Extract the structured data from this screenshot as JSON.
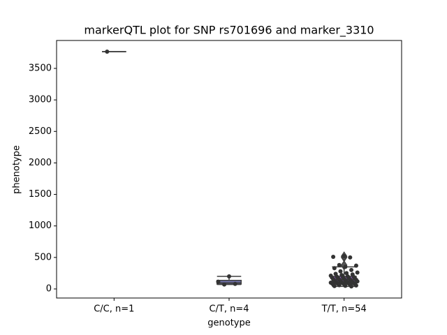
{
  "chart_data": {
    "type": "box",
    "title": "markerQTL plot for SNP rs701696 and marker_3310",
    "xlabel": "genotype",
    "ylabel": "phenotype",
    "categories": [
      "C/C, n=1",
      "C/T, n=4",
      "T/T, n=54"
    ],
    "colors": [
      "#3274a1",
      "#6f70ab",
      "#9b5bd8"
    ],
    "boxes": [
      {
        "min": 3766,
        "q1": 3766,
        "median": 3766,
        "q3": 3766,
        "max": 3766,
        "fliers": []
      },
      {
        "min": 70,
        "q1": 77.5,
        "median": 97.5,
        "q3": 136,
        "max": 200,
        "fliers": []
      },
      {
        "min": 40,
        "q1": 100,
        "median": 150,
        "q3": 200,
        "max": 350,
        "fliers": [
          370,
          380,
          500,
          510,
          520
        ]
      }
    ],
    "points": [
      [
        3766
      ],
      [
        200,
        115,
        80,
        70
      ],
      [
        520,
        510,
        500,
        380,
        370,
        350,
        330,
        300,
        280,
        260,
        250,
        240,
        230,
        220,
        210,
        200,
        195,
        190,
        185,
        180,
        175,
        170,
        165,
        160,
        155,
        150,
        148,
        145,
        140,
        135,
        130,
        125,
        120,
        118,
        115,
        110,
        105,
        100,
        98,
        95,
        92,
        90,
        88,
        85,
        80,
        78,
        75,
        70,
        65,
        60,
        55,
        50,
        45,
        40
      ]
    ],
    "ylim": [
      -144,
      3943
    ],
    "yticks": [
      0,
      500,
      1000,
      1500,
      2000,
      2500,
      3000,
      3500
    ]
  }
}
